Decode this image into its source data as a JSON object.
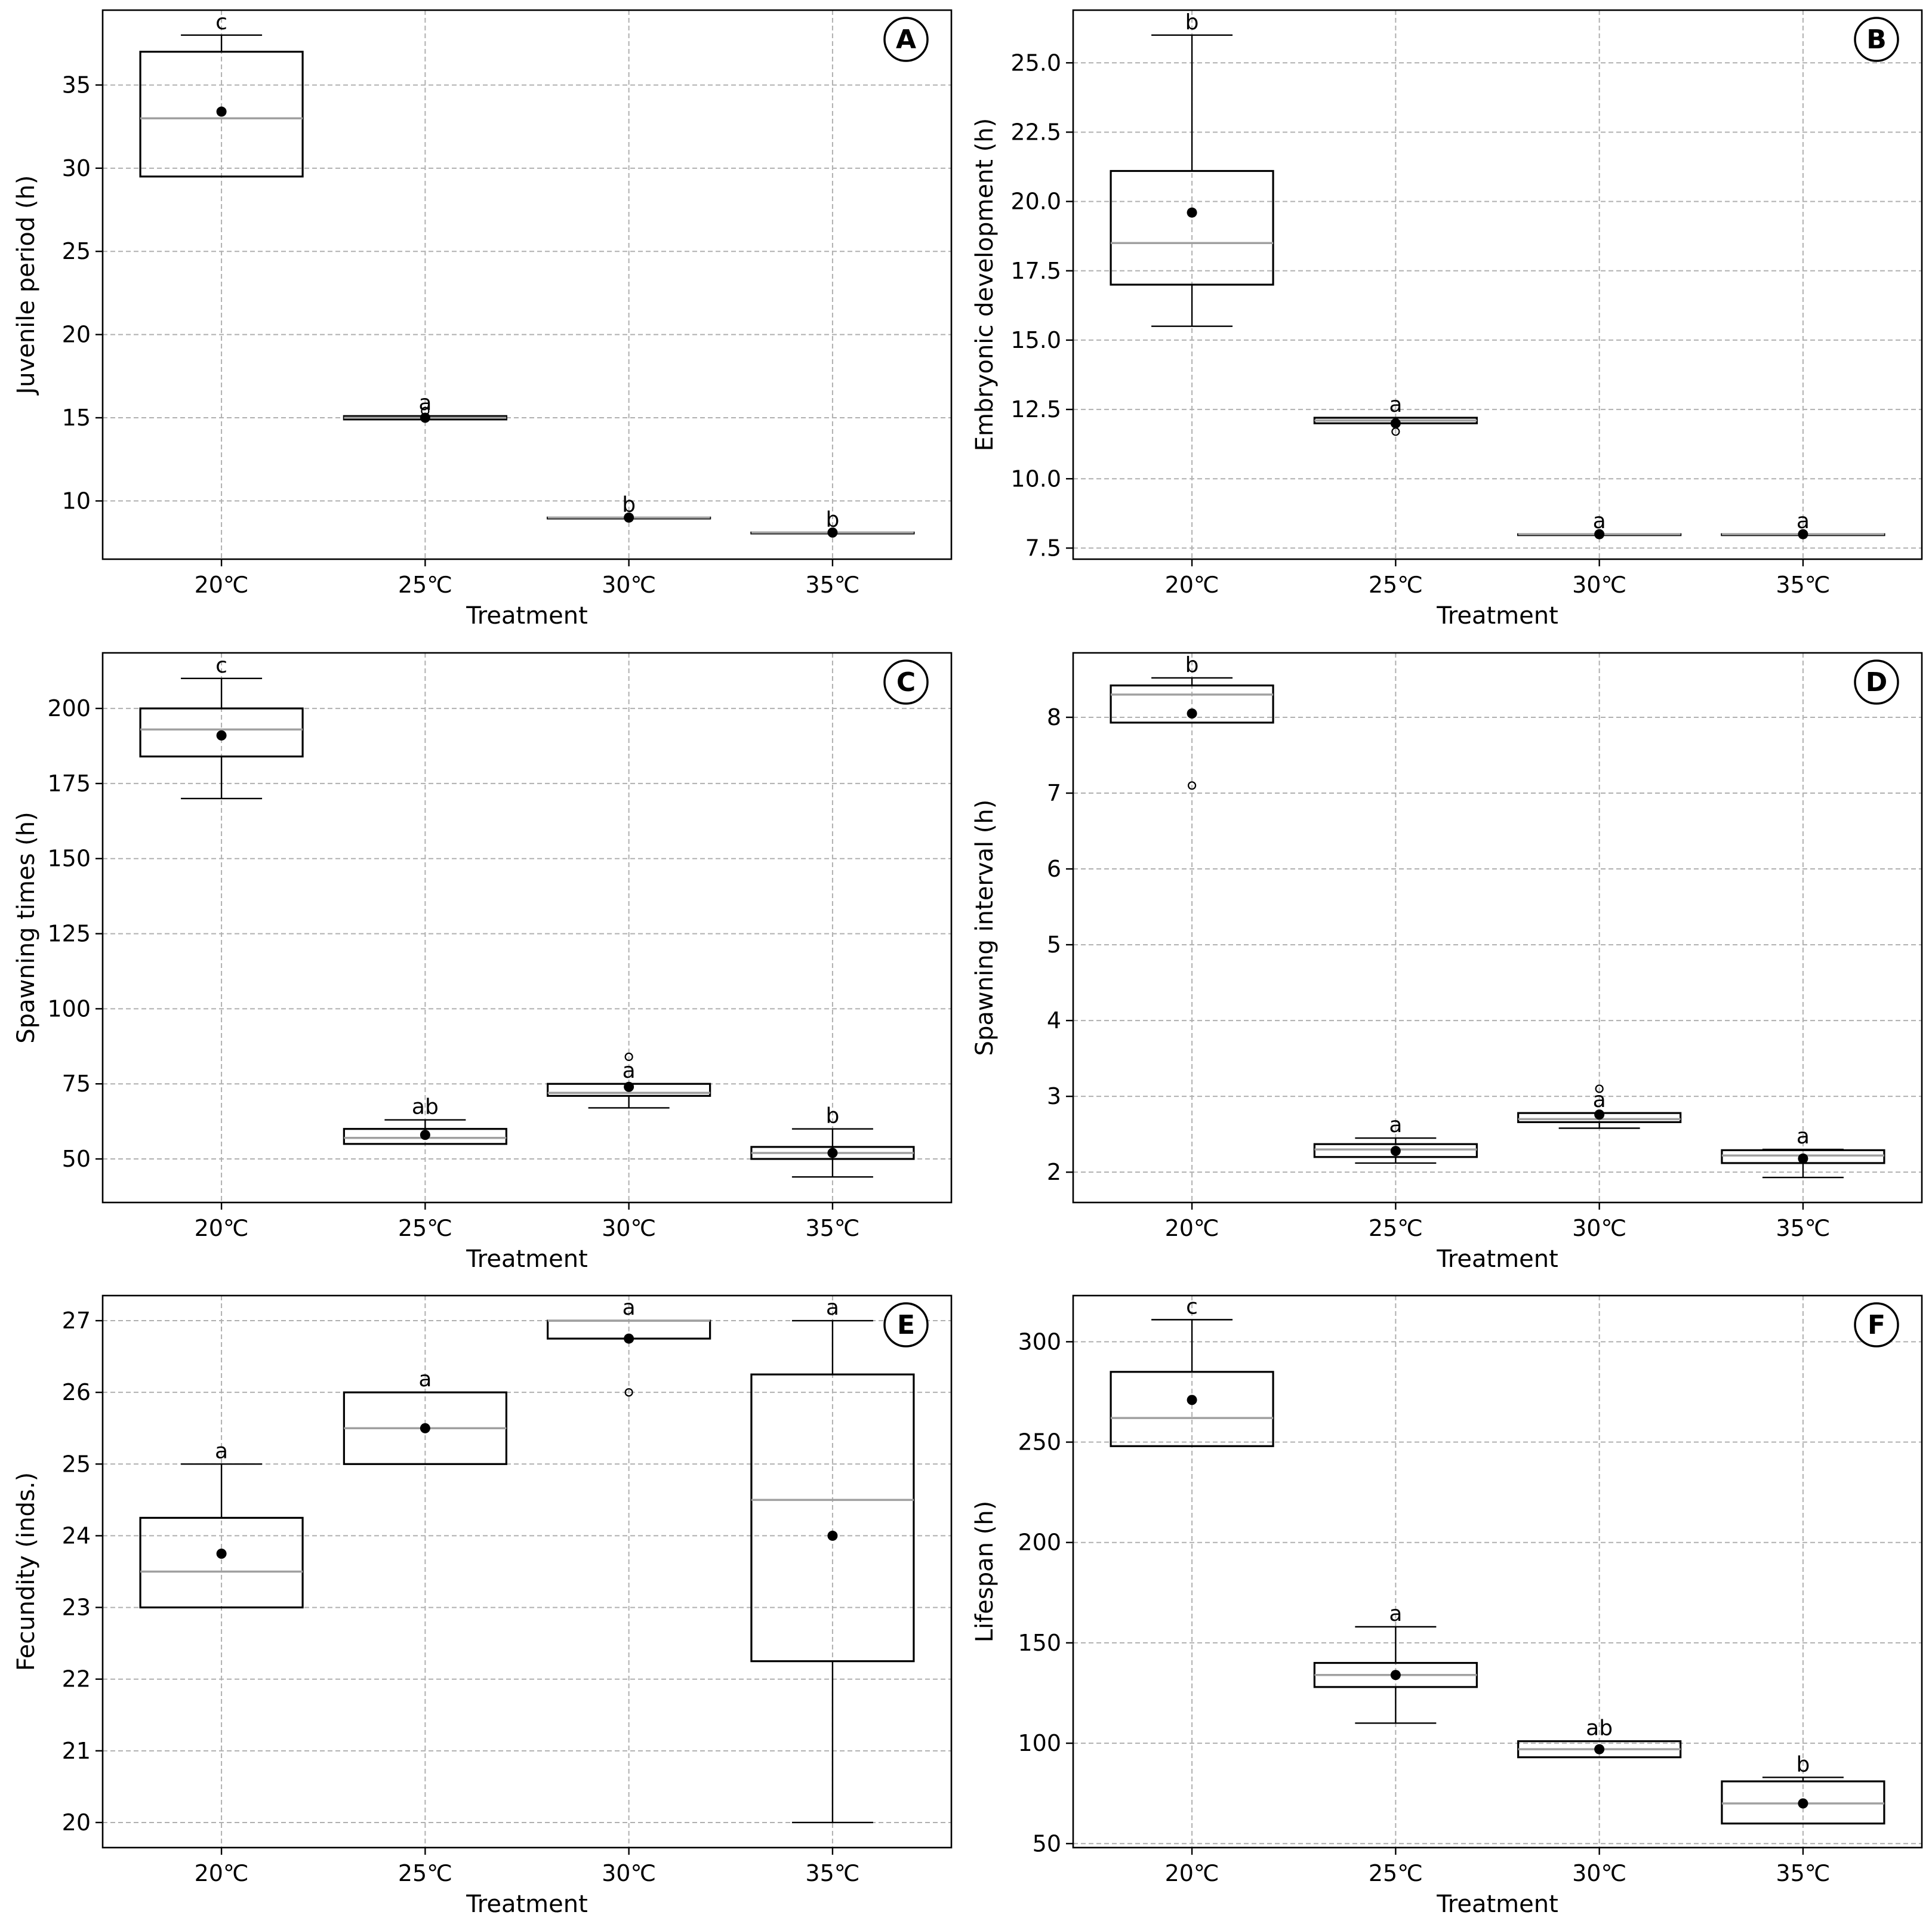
{
  "chart_data": [
    {
      "type": "box",
      "panel": "A",
      "ylabel": "Juvenile period (h)",
      "xlabel": "Treatment",
      "categories": [
        "20℃",
        "25℃",
        "30℃",
        "35℃"
      ],
      "ylim": [
        6.5,
        39.5
      ],
      "yticks": [
        10,
        15,
        20,
        25,
        30,
        35
      ],
      "ytick_labels": [
        "10",
        "15",
        "20",
        "25",
        "30",
        "35"
      ],
      "grid": true,
      "boxes": [
        {
          "whislo": 29.5,
          "q1": 29.5,
          "med": 33.0,
          "q3": 37.0,
          "whishi": 38.0,
          "mean": 33.4,
          "fliers": []
        },
        {
          "whislo": 14.9,
          "q1": 14.9,
          "med": 15.0,
          "q3": 15.1,
          "whishi": 15.1,
          "mean": 15.0,
          "fliers": [
            15.4
          ]
        },
        {
          "whislo": 9.0,
          "q1": 9.0,
          "med": 9.0,
          "q3": 9.0,
          "whishi": 9.0,
          "mean": 9.0,
          "fliers": []
        },
        {
          "whislo": 8.1,
          "q1": 8.1,
          "med": 8.1,
          "q3": 8.1,
          "whishi": 8.1,
          "mean": 8.1,
          "fliers": []
        }
      ],
      "letters": [
        "c",
        "a",
        "b",
        "b"
      ]
    },
    {
      "type": "box",
      "panel": "B",
      "ylabel": "Embryonic development (h)",
      "xlabel": "Treatment",
      "categories": [
        "20℃",
        "25℃",
        "30℃",
        "35℃"
      ],
      "ylim": [
        7.1,
        26.9
      ],
      "yticks": [
        7.5,
        10.0,
        12.5,
        15.0,
        17.5,
        20.0,
        22.5,
        25.0
      ],
      "ytick_labels": [
        "7.5",
        "10.0",
        "12.5",
        "15.0",
        "17.5",
        "20.0",
        "22.5",
        "25.0"
      ],
      "grid": true,
      "boxes": [
        {
          "whislo": 15.5,
          "q1": 17.0,
          "med": 18.5,
          "q3": 21.1,
          "whishi": 26.0,
          "mean": 19.6,
          "fliers": []
        },
        {
          "whislo": 12.0,
          "q1": 12.0,
          "med": 12.1,
          "q3": 12.2,
          "whishi": 12.2,
          "mean": 12.0,
          "fliers": [
            11.7
          ]
        },
        {
          "whislo": 8.0,
          "q1": 8.0,
          "med": 8.0,
          "q3": 8.0,
          "whishi": 8.0,
          "mean": 8.0,
          "fliers": []
        },
        {
          "whislo": 8.0,
          "q1": 8.0,
          "med": 8.0,
          "q3": 8.0,
          "whishi": 8.0,
          "mean": 8.0,
          "fliers": []
        }
      ],
      "letters": [
        "b",
        "a",
        "a",
        "a"
      ]
    },
    {
      "type": "box",
      "panel": "C",
      "ylabel": "Spawning times (h)",
      "xlabel": "Treatment",
      "categories": [
        "20℃",
        "25℃",
        "30℃",
        "35℃"
      ],
      "ylim": [
        35.5,
        218.5
      ],
      "yticks": [
        50,
        75,
        100,
        125,
        150,
        175,
        200
      ],
      "ytick_labels": [
        "50",
        "75",
        "100",
        "125",
        "150",
        "175",
        "200"
      ],
      "grid": true,
      "boxes": [
        {
          "whislo": 170,
          "q1": 184,
          "med": 193,
          "q3": 200,
          "whishi": 210,
          "mean": 191,
          "fliers": []
        },
        {
          "whislo": 55,
          "q1": 55,
          "med": 57,
          "q3": 60,
          "whishi": 63,
          "mean": 58,
          "fliers": []
        },
        {
          "whislo": 67,
          "q1": 71,
          "med": 72,
          "q3": 75,
          "whishi": 75,
          "mean": 74,
          "fliers": [
            84
          ]
        },
        {
          "whislo": 44,
          "q1": 50,
          "med": 52,
          "q3": 54,
          "whishi": 60,
          "mean": 52,
          "fliers": []
        }
      ],
      "letters": [
        "c",
        "ab",
        "a",
        "b"
      ]
    },
    {
      "type": "box",
      "panel": "D",
      "ylabel": "Spawning interval (h)",
      "xlabel": "Treatment",
      "categories": [
        "20℃",
        "25℃",
        "30℃",
        "35℃"
      ],
      "ylim": [
        1.6,
        8.85
      ],
      "yticks": [
        2,
        3,
        4,
        5,
        6,
        7,
        8
      ],
      "ytick_labels": [
        "2",
        "3",
        "4",
        "5",
        "6",
        "7",
        "8"
      ],
      "grid": true,
      "boxes": [
        {
          "whislo": 7.93,
          "q1": 7.93,
          "med": 8.3,
          "q3": 8.42,
          "whishi": 8.52,
          "mean": 8.05,
          "fliers": [
            7.1
          ]
        },
        {
          "whislo": 2.12,
          "q1": 2.2,
          "med": 2.3,
          "q3": 2.37,
          "whishi": 2.45,
          "mean": 2.28,
          "fliers": []
        },
        {
          "whislo": 2.58,
          "q1": 2.66,
          "med": 2.7,
          "q3": 2.78,
          "whishi": 2.78,
          "mean": 2.76,
          "fliers": [
            3.1
          ]
        },
        {
          "whislo": 1.93,
          "q1": 2.12,
          "med": 2.22,
          "q3": 2.29,
          "whishi": 2.3,
          "mean": 2.18,
          "fliers": []
        }
      ],
      "letters": [
        "b",
        "a",
        "a",
        "a"
      ]
    },
    {
      "type": "box",
      "panel": "E",
      "ylabel": "Fecundity (inds.)",
      "xlabel": "Treatment",
      "categories": [
        "20℃",
        "25℃",
        "30℃",
        "35℃"
      ],
      "ylim": [
        19.65,
        27.35
      ],
      "yticks": [
        20,
        21,
        22,
        23,
        24,
        25,
        26,
        27
      ],
      "ytick_labels": [
        "20",
        "21",
        "22",
        "23",
        "24",
        "25",
        "26",
        "27"
      ],
      "grid": true,
      "boxes": [
        {
          "whislo": 23.0,
          "q1": 23.0,
          "med": 23.5,
          "q3": 24.25,
          "whishi": 25.0,
          "mean": 23.75,
          "fliers": []
        },
        {
          "whislo": 25.0,
          "q1": 25.0,
          "med": 25.5,
          "q3": 26.0,
          "whishi": 26.0,
          "mean": 25.5,
          "fliers": []
        },
        {
          "whislo": 26.75,
          "q1": 26.75,
          "med": 27.0,
          "q3": 27.0,
          "whishi": 27.0,
          "mean": 26.75,
          "fliers": [
            26.0
          ]
        },
        {
          "whislo": 20.0,
          "q1": 22.25,
          "med": 24.5,
          "q3": 26.25,
          "whishi": 27.0,
          "mean": 24.0,
          "fliers": []
        }
      ],
      "letters": [
        "a",
        "a",
        "a",
        "a"
      ]
    },
    {
      "type": "box",
      "panel": "F",
      "ylabel": "Lifespan (h)",
      "xlabel": "Treatment",
      "categories": [
        "20℃",
        "25℃",
        "30℃",
        "35℃"
      ],
      "ylim": [
        48,
        323
      ],
      "yticks": [
        50,
        100,
        150,
        200,
        250,
        300
      ],
      "ytick_labels": [
        "50",
        "100",
        "150",
        "200",
        "250",
        "300"
      ],
      "grid": true,
      "boxes": [
        {
          "whislo": 248,
          "q1": 248,
          "med": 262,
          "q3": 285,
          "whishi": 311,
          "mean": 271,
          "fliers": []
        },
        {
          "whislo": 110,
          "q1": 128,
          "med": 134,
          "q3": 140,
          "whishi": 158,
          "mean": 134,
          "fliers": []
        },
        {
          "whislo": 93,
          "q1": 93,
          "med": 97,
          "q3": 101,
          "whishi": 101,
          "mean": 97,
          "fliers": []
        },
        {
          "whislo": 60,
          "q1": 60,
          "med": 70,
          "q3": 81,
          "whishi": 83,
          "mean": 70,
          "fliers": []
        }
      ],
      "letters": [
        "c",
        "a",
        "ab",
        "b"
      ]
    }
  ]
}
